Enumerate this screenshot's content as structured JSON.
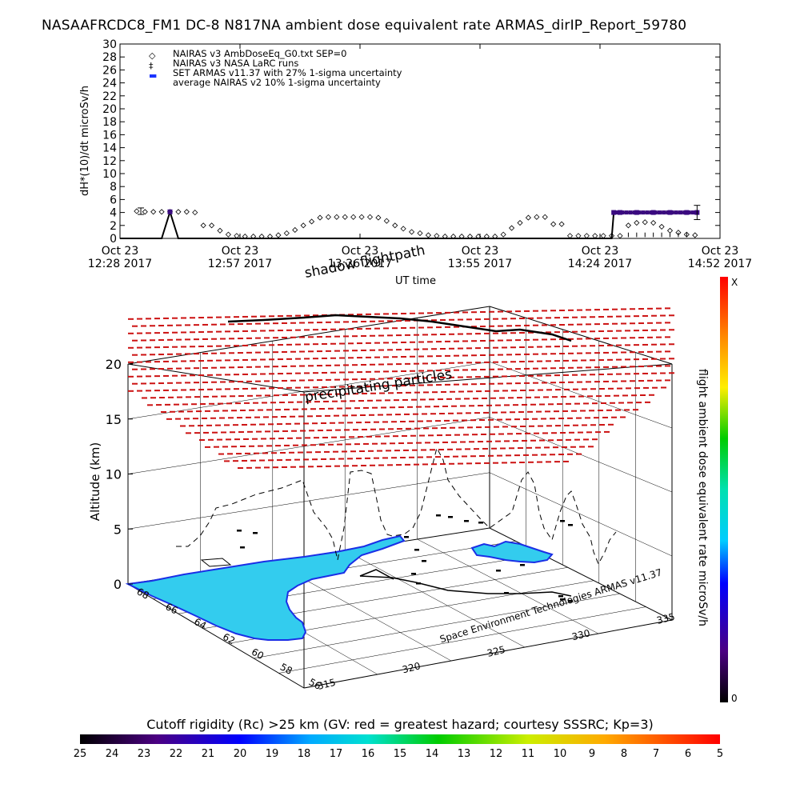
{
  "title": "NASAAFRCDC8_FM1 DC-8   N817NA ambient dose equivalent rate ARMAS_dirIP_Report_59780",
  "colors": {
    "nairas_v3": "#000000",
    "armas": "#1a33ff",
    "armas_dark": "#3a0a80",
    "precip": "#cc1111",
    "ocean_fill": "#33ccee",
    "coast": "#1a2fe6"
  },
  "chart_data": [
    {
      "type": "scatter",
      "title": "",
      "ylabel": "dH*(10)/dt microSv/h",
      "xlabel": "UT time",
      "ylim": [
        0,
        30
      ],
      "yticks": [
        "0",
        "2",
        "4",
        "6",
        "8",
        "10",
        "12",
        "14",
        "16",
        "18",
        "20",
        "22",
        "24",
        "26",
        "28",
        "30"
      ],
      "xtick_labels": [
        {
          "line1": "Oct 23",
          "line2": "12:28 2017"
        },
        {
          "line1": "Oct 23",
          "line2": "12:57 2017"
        },
        {
          "line1": "Oct 23",
          "line2": "13:26 2017"
        },
        {
          "line1": "Oct 23",
          "line2": "13:55 2017"
        },
        {
          "line1": "Oct 23",
          "line2": "14:24 2017"
        },
        {
          "line1": "Oct 23",
          "line2": "14:52 2017"
        }
      ],
      "legend": [
        {
          "symbol": "◇",
          "label": "NAIRAS v3 AmbDoseEq_G0.txt SEP=0"
        },
        {
          "symbol": "‡",
          "label": "NAIRAS v3 NASA LaRC runs"
        },
        {
          "symbol": "▬",
          "label": "SET ARMAS v11.37 with 27% 1-sigma uncertainty"
        },
        {
          "symbol": "",
          "label": "average NAIRAS v2 10% 1-sigma uncertainty"
        }
      ],
      "series": [
        {
          "name": "NAIRAS v3 AmbDoseEq_G0.txt SEP=0",
          "x_minutes": [
            4,
            6,
            8,
            10,
            12,
            14,
            16,
            18,
            20,
            22,
            24,
            26,
            28,
            30,
            32,
            34,
            36,
            38,
            40,
            42,
            44,
            46,
            48,
            50,
            52,
            54,
            56,
            58,
            60,
            62,
            64,
            66,
            68,
            70,
            72,
            74,
            76,
            78,
            80,
            82,
            84,
            86,
            88,
            90,
            92,
            94,
            96,
            98,
            100,
            102,
            104,
            106,
            108,
            110,
            112,
            114,
            116,
            118,
            120,
            122,
            124,
            126,
            128,
            130,
            132,
            134,
            136,
            138
          ],
          "y": [
            4.2,
            4.1,
            4.1,
            4.1,
            4.1,
            4.1,
            4.1,
            4.0,
            2.0,
            2.0,
            1.2,
            0.6,
            0.4,
            0.3,
            0.3,
            0.3,
            0.3,
            0.5,
            0.8,
            1.3,
            2.0,
            2.6,
            3.2,
            3.3,
            3.3,
            3.3,
            3.3,
            3.3,
            3.3,
            3.2,
            2.7,
            2.0,
            1.5,
            1.0,
            0.8,
            0.5,
            0.4,
            0.3,
            0.3,
            0.3,
            0.3,
            0.3,
            0.3,
            0.3,
            0.6,
            1.6,
            2.4,
            3.2,
            3.3,
            3.3,
            2.2,
            2.2,
            0.4,
            0.4,
            0.4,
            0.4,
            0.4,
            0.4,
            0.4,
            2.0,
            2.4,
            2.5,
            2.4,
            1.8,
            1.2,
            0.9,
            0.6,
            0.5
          ]
        },
        {
          "name": "SET ARMAS v11.37 with 27% 1-sigma uncertainty",
          "x_minutes": [
            0,
            10,
            12,
            14,
            20,
            40,
            60,
            80,
            100,
            118,
            118.5,
            120,
            124,
            128,
            132,
            136,
            138.5
          ],
          "y": [
            0,
            0,
            4.1,
            0,
            0,
            0,
            0,
            0,
            0,
            0,
            4.0,
            4.0,
            4.0,
            4.0,
            4.0,
            4.0,
            4.0
          ]
        }
      ],
      "error_bars": [
        {
          "x_minutes": 5,
          "y": 4.2,
          "err": 0.5
        },
        {
          "x_minutes": 138.5,
          "y": 4.0,
          "err": 1.1
        }
      ]
    },
    {
      "type": "3d-flight-track",
      "title": "shadow flightpath",
      "zlabel": "Altitude (km)",
      "zticks": [
        "0",
        "5",
        "10",
        "15",
        "20"
      ],
      "lat_ticks": [
        "68",
        "66",
        "64",
        "62",
        "60",
        "58",
        "56"
      ],
      "lon_ticks": [
        "315",
        "320",
        "325",
        "330",
        "335"
      ],
      "annotation": "precipitating particles",
      "credit": "Space Environment Technologies ARMAS v11.37",
      "colorbar": {
        "label": "flight ambient dose equivalent rate microSv/h",
        "max_label": "X",
        "min_label": "0"
      },
      "cutoff_rigidity": {
        "label": "Cutoff rigidity (Rc) >25 km (GV: red = greatest hazard; courtesy SSSRC; Kp=3)",
        "ticks": [
          "25",
          "24",
          "23",
          "22",
          "21",
          "20",
          "19",
          "18",
          "17",
          "16",
          "15",
          "14",
          "13",
          "12",
          "11",
          "10",
          "9",
          "8",
          "7",
          "6",
          "5"
        ]
      }
    }
  ],
  "axes_labels": {
    "ut_time": "UT time",
    "ylabel": "dH*(10)/dt microSv/h"
  }
}
